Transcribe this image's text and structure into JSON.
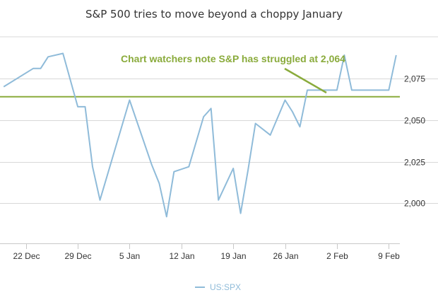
{
  "chart_data": {
    "type": "line",
    "title": "S&P 500 tries to move beyond a choppy January",
    "xlabel": "",
    "ylabel": "",
    "x_tick_labels": [
      "22 Dec",
      "29 Dec",
      "5 Jan",
      "12 Jan",
      "19 Jan",
      "26 Jan",
      "2 Feb",
      "9 Feb"
    ],
    "y_tick_labels": [
      "2,000",
      "2,025",
      "2,050",
      "2,075"
    ],
    "y_ticks": [
      2000,
      2025,
      2050,
      2075
    ],
    "ylim": [
      1976,
      2100
    ],
    "x_day_range": [
      -3.5,
      50.5
    ],
    "series": [
      {
        "name": "US:SPX",
        "color": "#8fbbd9",
        "x_days": [
          -3,
          1,
          2,
          3,
          5,
          7,
          8,
          9,
          10,
          14,
          17,
          18,
          19,
          20,
          22,
          24,
          25,
          26,
          28,
          29,
          30,
          31,
          33,
          35,
          36,
          37,
          38,
          42,
          43,
          44,
          45,
          47,
          48,
          49,
          50
        ],
        "values": [
          2070,
          2081,
          2081,
          2088,
          2090,
          2058,
          2058,
          2022,
          2002,
          2062,
          2023,
          2012,
          1992,
          2019,
          2022,
          2052,
          2057,
          2002,
          2021,
          1994,
          2020,
          2048,
          2041,
          2062,
          2055,
          2046,
          2068,
          2068,
          2089,
          2068,
          2068,
          2068,
          2068,
          2068,
          2089
        ]
      }
    ],
    "reference_line": {
      "value": 2064,
      "color": "#8aab3c",
      "label": "Chart watchers note S&P has struggled at 2,064"
    },
    "legend": {
      "position": "bottom-center",
      "entries": [
        "US:SPX"
      ]
    },
    "grid": true
  }
}
